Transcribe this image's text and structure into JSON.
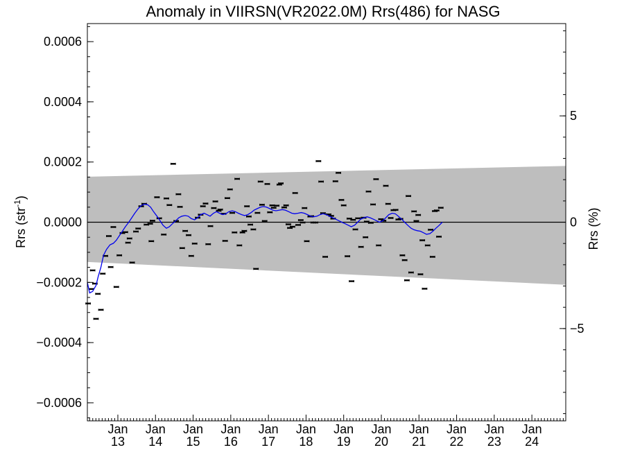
{
  "chart_data": {
    "type": "line",
    "title": "Anomaly in VIIRSN(VR2022.0M) Rrs(486) for NASG",
    "ylabel": "Rrs (str",
    "ylabel_sup": "-1",
    "ylabel_close": ")",
    "y2label": "Rrs (%)",
    "ylim": [
      -0.00066,
      0.00066
    ],
    "y2lim": [
      -9.34,
      9.34
    ],
    "xlim": [
      2012.19,
      2024.9
    ],
    "yticks": [
      {
        "value": -0.0006,
        "label": "−0.0006"
      },
      {
        "value": -0.0004,
        "label": "−0.0004"
      },
      {
        "value": -0.0002,
        "label": "−0.0002"
      },
      {
        "value": 0.0,
        "label": "0.0000"
      },
      {
        "value": 0.0002,
        "label": "0.0002"
      },
      {
        "value": 0.0004,
        "label": "0.0004"
      },
      {
        "value": 0.0006,
        "label": "0.0006"
      }
    ],
    "y2ticks": [
      {
        "value": -5,
        "label": "−5"
      },
      {
        "value": 0,
        "label": "0"
      },
      {
        "value": 5,
        "label": "5"
      }
    ],
    "xticks": [
      {
        "value": 2013.0,
        "top": "Jan",
        "bottom": "13"
      },
      {
        "value": 2014.0,
        "top": "Jan",
        "bottom": "14"
      },
      {
        "value": 2015.0,
        "top": "Jan",
        "bottom": "15"
      },
      {
        "value": 2016.0,
        "top": "Jan",
        "bottom": "16"
      },
      {
        "value": 2017.0,
        "top": "Jan",
        "bottom": "17"
      },
      {
        "value": 2018.0,
        "top": "Jan",
        "bottom": "18"
      },
      {
        "value": 2019.0,
        "top": "Jan",
        "bottom": "19"
      },
      {
        "value": 2020.0,
        "top": "Jan",
        "bottom": "20"
      },
      {
        "value": 2021.0,
        "top": "Jan",
        "bottom": "21"
      },
      {
        "value": 2022.0,
        "top": "Jan",
        "bottom": "22"
      },
      {
        "value": 2023.0,
        "top": "Jan",
        "bottom": "23"
      },
      {
        "value": 2024.0,
        "top": "Jan",
        "bottom": "24"
      }
    ],
    "band": {
      "color": "#bebebe",
      "upper": [
        [
          2012.19,
          0.000151
        ],
        [
          2024.9,
          0.000187
        ]
      ],
      "lower": [
        [
          2012.19,
          -0.000132
        ],
        [
          2024.9,
          -0.000208
        ]
      ]
    },
    "zero_line": 0.0,
    "series": [
      {
        "kind": "points",
        "color": "#000000",
        "points": [
          [
            2012.21,
            -0.00027
          ],
          [
            2012.29,
            -0.000222
          ],
          [
            2012.33,
            -0.00016
          ],
          [
            2012.39,
            -0.000204
          ],
          [
            2012.42,
            -0.000321
          ],
          [
            2012.47,
            -0.000238
          ],
          [
            2012.55,
            -0.000291
          ],
          [
            2012.6,
            -0.000171
          ],
          [
            2012.67,
            -0.000112
          ],
          [
            2012.76,
            -4.6e-05
          ],
          [
            2012.81,
            -0.000149
          ],
          [
            2012.88,
            -1.6e-05
          ],
          [
            2012.96,
            -0.000215
          ],
          [
            2013.04,
            -0.00011
          ],
          [
            2013.12,
            -3.6e-05
          ],
          [
            2013.2,
            -3.3e-05
          ],
          [
            2013.27,
            -6.8e-05
          ],
          [
            2013.31,
            -5.4e-05
          ],
          [
            2013.38,
            -0.000134
          ],
          [
            2013.48,
            -3.1e-05
          ],
          [
            2013.54,
            -2.1e-05
          ],
          [
            2013.62,
            5.3e-05
          ],
          [
            2013.7,
            6.1e-05
          ],
          [
            2013.76,
            -8e-06
          ],
          [
            2013.86,
            -5e-06
          ],
          [
            2013.89,
            -6.3e-05
          ],
          [
            2013.92,
            5e-06
          ],
          [
            2014.04,
            8.3e-05
          ],
          [
            2014.1,
            1.3e-05
          ],
          [
            2014.22,
            -4.1e-05
          ],
          [
            2014.29,
            7.9e-05
          ],
          [
            2014.37,
            5.7e-05
          ],
          [
            2014.47,
            0.000194
          ],
          [
            2014.55,
            4e-06
          ],
          [
            2014.61,
            9.3e-05
          ],
          [
            2014.65,
            5.1e-05
          ],
          [
            2014.71,
            -8.6e-05
          ],
          [
            2014.79,
            -2.9e-05
          ],
          [
            2014.88,
            -4.3e-05
          ],
          [
            2014.95,
            -0.000112
          ],
          [
            2015.04,
            -7.1e-05
          ],
          [
            2015.12,
            1.5e-05
          ],
          [
            2015.2,
            2.5e-05
          ],
          [
            2015.26,
            5.3e-05
          ],
          [
            2015.33,
            6.2e-05
          ],
          [
            2015.4,
            -7.3e-05
          ],
          [
            2015.46,
            -1.3e-05
          ],
          [
            2015.55,
            4.7e-05
          ],
          [
            2015.59,
            6.9e-05
          ],
          [
            2015.68,
            3.8e-05
          ],
          [
            2015.72,
            4.2e-05
          ],
          [
            2015.81,
            2.8e-05
          ],
          [
            2015.85,
            -6.2e-05
          ],
          [
            2015.91,
            8e-05
          ],
          [
            2015.98,
            0.000109
          ],
          [
            2016.04,
            3.1e-05
          ],
          [
            2016.1,
            -3.4e-05
          ],
          [
            2016.17,
            0.000144
          ],
          [
            2016.23,
            -7.7e-05
          ],
          [
            2016.31,
            -3.4e-05
          ],
          [
            2016.36,
            -2.9e-05
          ],
          [
            2016.43,
            5.3e-05
          ],
          [
            2016.48,
            1.9e-05
          ],
          [
            2016.52,
            -8e-06
          ],
          [
            2016.6,
            -2.4e-05
          ],
          [
            2016.67,
            -0.000155
          ],
          [
            2016.71,
            3.1e-05
          ],
          [
            2016.79,
            0.000135
          ],
          [
            2016.83,
            5.8e-05
          ],
          [
            2016.9,
            4e-06
          ],
          [
            2016.97,
            0.000127
          ],
          [
            2017.04,
            3.3e-05
          ],
          [
            2017.1,
            5.6e-05
          ],
          [
            2017.14,
            4.8e-05
          ],
          [
            2017.22,
            5.5e-05
          ],
          [
            2017.29,
            0.000125
          ],
          [
            2017.33,
            0.000129
          ],
          [
            2017.42,
            4.9e-05
          ],
          [
            2017.47,
            5.6e-05
          ],
          [
            2017.53,
            -7e-06
          ],
          [
            2017.57,
            -1.9e-05
          ],
          [
            2017.64,
            -1.5e-05
          ],
          [
            2017.71,
            9.7e-05
          ],
          [
            2017.79,
            -9e-06
          ],
          [
            2017.86,
            7e-06
          ],
          [
            2017.91,
            -1e-06
          ],
          [
            2017.96,
            4.7e-05
          ],
          [
            2018.02,
            -6.3e-05
          ],
          [
            2018.11,
            1.9e-05
          ],
          [
            2018.14,
            2e-05
          ],
          [
            2018.19,
            -1e-06
          ],
          [
            2018.25,
            -1e-06
          ],
          [
            2018.33,
            0.000203
          ],
          [
            2018.4,
            0.000135
          ],
          [
            2018.45,
            3e-05
          ],
          [
            2018.51,
            -0.000115
          ],
          [
            2018.6,
            2.6e-05
          ],
          [
            2018.67,
            2.1e-05
          ],
          [
            2018.72,
            1.2e-05
          ],
          [
            2018.78,
            0.000136
          ],
          [
            2018.86,
            0.000164
          ],
          [
            2018.94,
            7.4e-05
          ],
          [
            2019.0,
            5.6e-05
          ],
          [
            2019.1,
            -0.000113
          ],
          [
            2019.15,
            1.2e-05
          ],
          [
            2019.21,
            -0.000196
          ],
          [
            2019.25,
            8e-06
          ],
          [
            2019.31,
            -2.4e-05
          ],
          [
            2019.38,
            1.3e-05
          ],
          [
            2019.46,
            -8.2e-05
          ],
          [
            2019.53,
            1.5e-05
          ],
          [
            2019.58,
            -5e-05
          ],
          [
            2019.61,
            2e-06
          ],
          [
            2019.66,
            0.000102
          ],
          [
            2019.72,
            -2e-06
          ],
          [
            2019.78,
            5.9e-05
          ],
          [
            2019.86,
            0.000143
          ],
          [
            2019.93,
            -7.7e-05
          ],
          [
            2019.99,
            1e-05
          ],
          [
            2020.06,
            5e-06
          ],
          [
            2020.12,
            0.000121
          ],
          [
            2020.18,
            6.1e-05
          ],
          [
            2020.25,
            1.4e-05
          ],
          [
            2020.32,
            4e-05
          ],
          [
            2020.38,
            4.1e-05
          ],
          [
            2020.45,
            9e-06
          ],
          [
            2020.51,
            1.1e-05
          ],
          [
            2020.56,
            -0.00011
          ],
          [
            2020.62,
            -0.000126
          ],
          [
            2020.68,
            -0.000193
          ],
          [
            2020.72,
            8.7e-05
          ],
          [
            2020.79,
            -0.000167
          ],
          [
            2020.87,
            3.6e-05
          ],
          [
            2020.93,
            4e-06
          ],
          [
            2020.98,
            2.4e-05
          ],
          [
            2021.04,
            -0.000173
          ],
          [
            2021.09,
            -6e-05
          ],
          [
            2021.15,
            -0.000221
          ],
          [
            2021.23,
            -7.7e-05
          ],
          [
            2021.31,
            -2.5e-05
          ],
          [
            2021.36,
            -0.000115
          ],
          [
            2021.42,
            3.7e-05
          ],
          [
            2021.47,
            3.9e-05
          ],
          [
            2021.53,
            -4.8e-05
          ],
          [
            2021.58,
            4.8e-05
          ]
        ]
      },
      {
        "kind": "line",
        "color": "#0000ee",
        "points": [
          [
            2012.19,
            -0.0002
          ],
          [
            2012.25,
            -0.000235
          ],
          [
            2012.33,
            -0.00023
          ],
          [
            2012.42,
            -0.00021
          ],
          [
            2012.48,
            -0.00018
          ],
          [
            2012.55,
            -0.00015
          ],
          [
            2012.62,
            -0.00011
          ],
          [
            2012.7,
            -9e-05
          ],
          [
            2012.79,
            -7.5e-05
          ],
          [
            2012.88,
            -7e-05
          ],
          [
            2012.96,
            -6e-05
          ],
          [
            2013.04,
            -4.5e-05
          ],
          [
            2013.12,
            -3e-05
          ],
          [
            2013.2,
            -1.5e-05
          ],
          [
            2013.29,
            0.0
          ],
          [
            2013.37,
            1.5e-05
          ],
          [
            2013.45,
            3e-05
          ],
          [
            2013.54,
            4.5e-05
          ],
          [
            2013.62,
            5.5e-05
          ],
          [
            2013.7,
            6e-05
          ],
          [
            2013.79,
            5.8e-05
          ],
          [
            2013.87,
            5e-05
          ],
          [
            2013.95,
            3.5e-05
          ],
          [
            2014.04,
            2e-05
          ],
          [
            2014.12,
            5e-06
          ],
          [
            2014.2,
            -1e-05
          ],
          [
            2014.29,
            -2e-05
          ],
          [
            2014.37,
            -1.5e-05
          ],
          [
            2014.45,
            -5e-06
          ],
          [
            2014.54,
            5e-06
          ],
          [
            2014.62,
            1.5e-05
          ],
          [
            2014.7,
            2e-05
          ],
          [
            2014.79,
            2.2e-05
          ],
          [
            2014.87,
            2e-05
          ],
          [
            2014.95,
            1.2e-05
          ],
          [
            2015.04,
            8e-06
          ],
          [
            2015.12,
            1.5e-05
          ],
          [
            2015.2,
            2.5e-05
          ],
          [
            2015.29,
            3e-05
          ],
          [
            2015.37,
            2.5e-05
          ],
          [
            2015.45,
            2e-05
          ],
          [
            2015.54,
            3e-05
          ],
          [
            2015.62,
            3.5e-05
          ],
          [
            2015.7,
            3e-05
          ],
          [
            2015.79,
            2.5e-05
          ],
          [
            2015.87,
            2.8e-05
          ],
          [
            2015.95,
            3.5e-05
          ],
          [
            2016.04,
            3.8e-05
          ],
          [
            2016.12,
            3.5e-05
          ],
          [
            2016.2,
            3e-05
          ],
          [
            2016.29,
            2.5e-05
          ],
          [
            2016.37,
            2.2e-05
          ],
          [
            2016.45,
            2.5e-05
          ],
          [
            2016.54,
            3.2e-05
          ],
          [
            2016.62,
            4e-05
          ],
          [
            2016.7,
            4.5e-05
          ],
          [
            2016.79,
            5e-05
          ],
          [
            2016.87,
            5.2e-05
          ],
          [
            2016.95,
            5e-05
          ],
          [
            2017.04,
            4.5e-05
          ],
          [
            2017.12,
            4e-05
          ],
          [
            2017.2,
            3.8e-05
          ],
          [
            2017.29,
            4e-05
          ],
          [
            2017.37,
            4.2e-05
          ],
          [
            2017.45,
            4e-05
          ],
          [
            2017.54,
            3.5e-05
          ],
          [
            2017.62,
            3e-05
          ],
          [
            2017.7,
            2.8e-05
          ],
          [
            2017.79,
            3e-05
          ],
          [
            2017.87,
            3.2e-05
          ],
          [
            2017.95,
            3e-05
          ],
          [
            2018.04,
            2.5e-05
          ],
          [
            2018.12,
            2e-05
          ],
          [
            2018.2,
            1.8e-05
          ],
          [
            2018.29,
            2e-05
          ],
          [
            2018.37,
            2.5e-05
          ],
          [
            2018.45,
            2.8e-05
          ],
          [
            2018.54,
            2.5e-05
          ],
          [
            2018.62,
            2e-05
          ],
          [
            2018.7,
            1.5e-05
          ],
          [
            2018.79,
            1e-05
          ],
          [
            2018.87,
            5e-06
          ],
          [
            2018.95,
            0.0
          ],
          [
            2019.04,
            -5e-06
          ],
          [
            2019.12,
            -1e-05
          ],
          [
            2019.2,
            -1.5e-05
          ],
          [
            2019.29,
            -1e-05
          ],
          [
            2019.37,
            0.0
          ],
          [
            2019.45,
            1e-05
          ],
          [
            2019.54,
            1.5e-05
          ],
          [
            2019.62,
            1.8e-05
          ],
          [
            2019.7,
            1.5e-05
          ],
          [
            2019.79,
            1e-05
          ],
          [
            2019.87,
            5e-06
          ],
          [
            2019.95,
            0.0
          ],
          [
            2020.04,
            5e-06
          ],
          [
            2020.12,
            1.5e-05
          ],
          [
            2020.2,
            2.5e-05
          ],
          [
            2020.29,
            3e-05
          ],
          [
            2020.37,
            2.8e-05
          ],
          [
            2020.45,
            2e-05
          ],
          [
            2020.54,
            1e-05
          ],
          [
            2020.62,
            0.0
          ],
          [
            2020.7,
            -1e-05
          ],
          [
            2020.79,
            -2e-05
          ],
          [
            2020.87,
            -2.5e-05
          ],
          [
            2020.95,
            -2.8e-05
          ],
          [
            2021.04,
            -3e-05
          ],
          [
            2021.12,
            -3.5e-05
          ],
          [
            2021.2,
            -4e-05
          ],
          [
            2021.29,
            -3.8e-05
          ],
          [
            2021.37,
            -3e-05
          ],
          [
            2021.45,
            -2e-05
          ],
          [
            2021.54,
            -1e-05
          ],
          [
            2021.62,
            0.0
          ]
        ]
      }
    ]
  }
}
